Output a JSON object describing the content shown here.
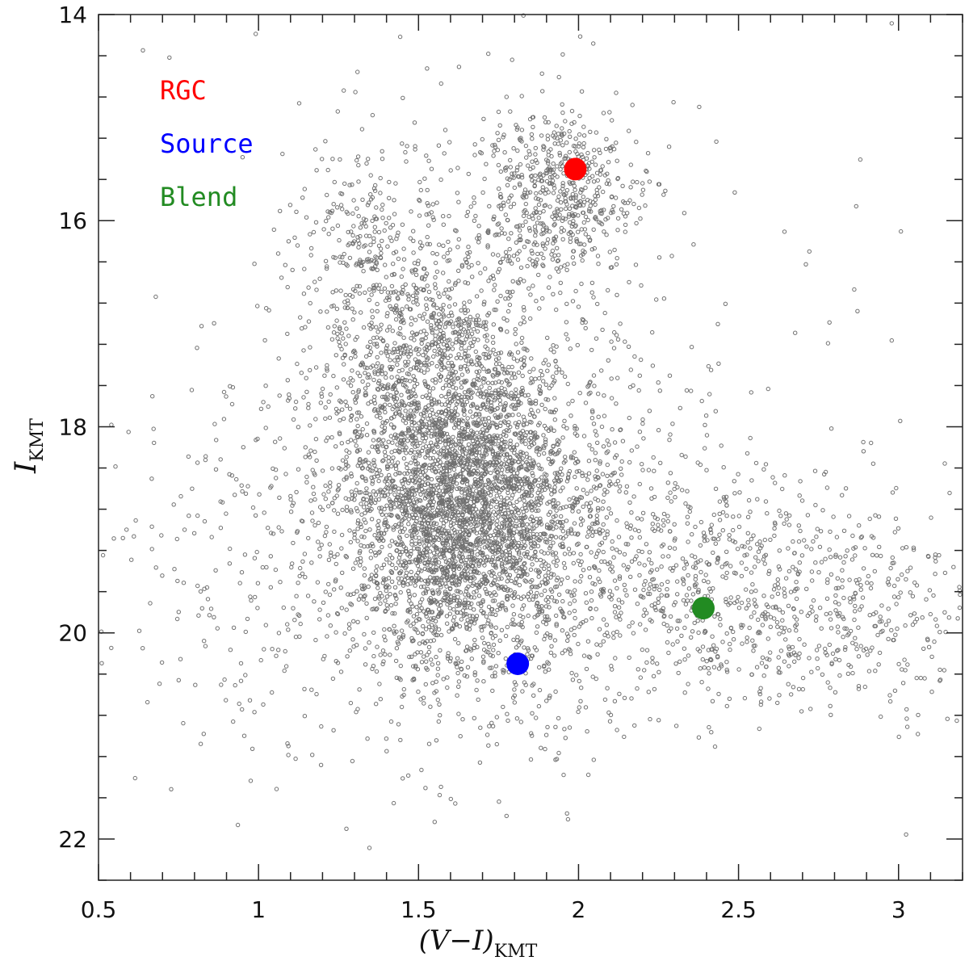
{
  "chart_data": {
    "type": "scatter",
    "title": "",
    "xlabel": {
      "main": "(V−I)",
      "sub": "KMT"
    },
    "ylabel": {
      "main": "I",
      "sub": "KMT"
    },
    "xlim": [
      0.5,
      3.2
    ],
    "ylim": [
      22.4,
      14.0
    ],
    "y_inverted": true,
    "grid": false,
    "x_ticks": [
      {
        "value": 0.5,
        "label": "0.5"
      },
      {
        "value": 1.0,
        "label": "1"
      },
      {
        "value": 1.5,
        "label": "1.5"
      },
      {
        "value": 2.0,
        "label": "2"
      },
      {
        "value": 2.5,
        "label": "2.5"
      },
      {
        "value": 3.0,
        "label": "3"
      }
    ],
    "y_ticks": [
      {
        "value": 14,
        "label": "14"
      },
      {
        "value": 16,
        "label": "16"
      },
      {
        "value": 18,
        "label": "18"
      },
      {
        "value": 20,
        "label": "20"
      },
      {
        "value": 22,
        "label": "22"
      }
    ],
    "x_minor_step": 0.1,
    "y_minor_step": 0.4,
    "background_stars": {
      "color": "#707070",
      "description": "field star color-magnitude diagram",
      "clumps": [
        {
          "name": "main body",
          "center": [
            1.63,
            18.75
          ],
          "spread": [
            0.17,
            0.7
          ],
          "count": 2700
        },
        {
          "name": "extended body",
          "center": [
            1.72,
            18.9
          ],
          "spread": [
            0.3,
            1.05
          ],
          "count": 1500
        },
        {
          "name": "red giant branch lower",
          "center": [
            1.55,
            17.3
          ],
          "spread": [
            0.18,
            0.6
          ],
          "count": 800
        },
        {
          "name": "red giant clump",
          "center": [
            1.93,
            15.75
          ],
          "spread": [
            0.13,
            0.4
          ],
          "count": 600
        },
        {
          "name": "upper giant branch",
          "center": [
            1.35,
            16.2
          ],
          "spread": [
            0.12,
            0.6
          ],
          "count": 260
        },
        {
          "name": "reddened tail",
          "center": [
            2.45,
            19.6
          ],
          "spread": [
            0.3,
            0.55
          ],
          "count": 650
        },
        {
          "name": "far red tail",
          "center": [
            2.85,
            19.8
          ],
          "spread": [
            0.25,
            0.5
          ],
          "count": 250
        },
        {
          "name": "blue scatter",
          "center": [
            0.95,
            19.4
          ],
          "spread": [
            0.25,
            1.0
          ],
          "count": 230
        },
        {
          "name": "sparse halo",
          "center": [
            1.85,
            17.5
          ],
          "spread": [
            0.65,
            2.0
          ],
          "count": 220
        }
      ]
    },
    "highlighted_points": [
      {
        "name": "RGC",
        "x": 1.99,
        "y": 15.5,
        "color": "#ff0000"
      },
      {
        "name": "Source",
        "x": 1.81,
        "y": 20.3,
        "color": "#0000ff"
      },
      {
        "name": "Blend",
        "x": 2.39,
        "y": 19.76,
        "color": "#228b22"
      }
    ],
    "legend": {
      "placement": "top-left",
      "entries": [
        {
          "label": "RGC",
          "color": "#ff0000"
        },
        {
          "label": "Source",
          "color": "#0000ff"
        },
        {
          "label": "Blend",
          "color": "#228b22"
        }
      ]
    }
  }
}
